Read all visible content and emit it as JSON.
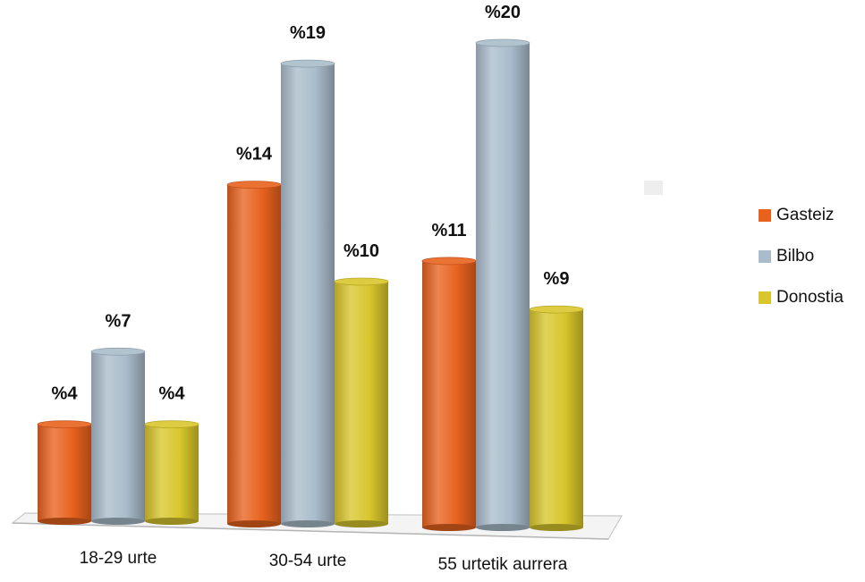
{
  "chart_data": {
    "type": "bar",
    "style": "3d-cylinder",
    "categories": [
      "18-29 urte",
      "30-54 urte",
      "55 urtetik aurrera"
    ],
    "series": [
      {
        "name": "Gasteiz",
        "color": "#e8621e",
        "values": [
          4,
          14,
          11
        ],
        "labels": [
          "%4",
          "%14",
          "%11"
        ]
      },
      {
        "name": "Bilbo",
        "color": "#a9bccb",
        "values": [
          7,
          19,
          20
        ],
        "labels": [
          "%7",
          "%19",
          "%20"
        ]
      },
      {
        "name": "Donostia",
        "color": "#d9c62c",
        "values": [
          4,
          10,
          9
        ],
        "labels": [
          "%4",
          "%10",
          "%9"
        ]
      }
    ],
    "ylim": [
      0,
      20
    ],
    "grid": false,
    "legend_position": "right"
  }
}
